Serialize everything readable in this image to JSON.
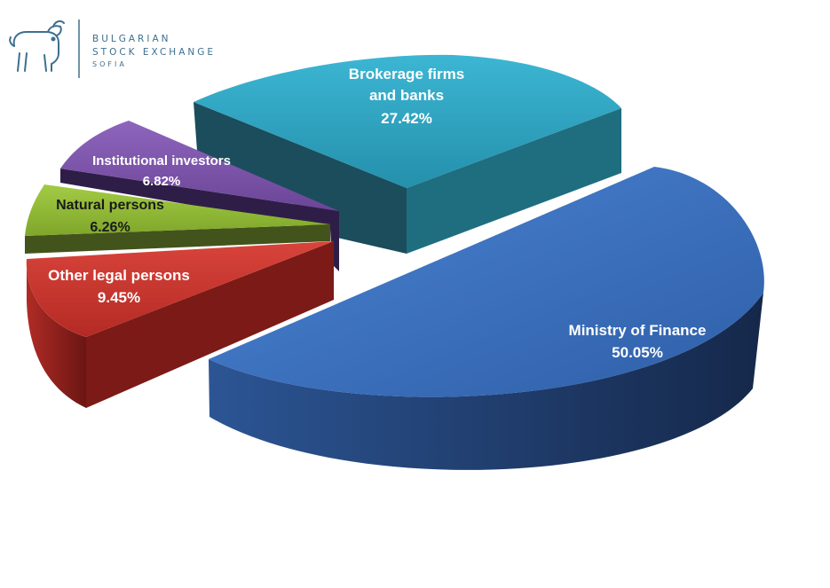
{
  "logo": {
    "line1": "BULGARIAN",
    "line2": "STOCK EXCHANGE",
    "line3": "SOFIA",
    "color": "#3d6f8f",
    "icon": "bull-icon"
  },
  "chart_data": {
    "type": "pie",
    "style": "3d-exploded",
    "title": "",
    "slices": [
      {
        "line1": "Ministry of Finance",
        "line2": "",
        "pct_label": "50.05%",
        "value": 50.05,
        "color": "#3a6fc0"
      },
      {
        "line1": "Brokerage firms",
        "line2": "and banks",
        "pct_label": "27.42%",
        "value": 27.42,
        "color": "#2ea4c2"
      },
      {
        "line1": "Institutional investors",
        "line2": "",
        "pct_label": "6.82%",
        "value": 6.82,
        "color": "#7a52a8"
      },
      {
        "line1": "Natural persons",
        "line2": "",
        "pct_label": "6.26%",
        "value": 6.26,
        "color": "#8fb832"
      },
      {
        "line1": "Other legal persons",
        "line2": "",
        "pct_label": "9.45%",
        "value": 9.45,
        "color": "#c8322c"
      }
    ]
  }
}
